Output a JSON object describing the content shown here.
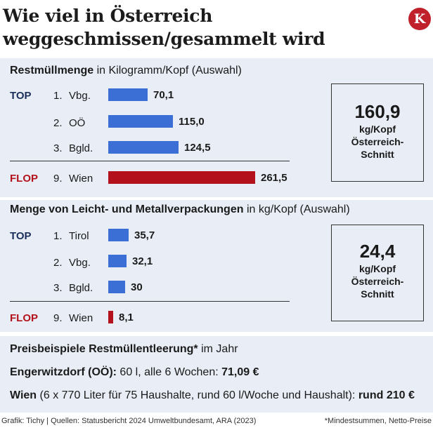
{
  "title_line1": "Wie viel in Österreich",
  "title_line2": "weggeschmissen/gesammelt wird",
  "logo_letter": "K",
  "section1": {
    "title_bold": "Restmüllmenge",
    "title_rest": " in Kilogramm/Kopf (Auswahl)",
    "top_label": "TOP",
    "flop_label": "FLOP",
    "box_value": "160,9",
    "box_unit": "kg/Kopf",
    "box_line2": "Österreich-",
    "box_line3": "Schnitt",
    "rows": [
      {
        "rank": "1.",
        "name": "Vbg.",
        "label": "70,1"
      },
      {
        "rank": "2.",
        "name": "OÖ",
        "label": "115,0"
      },
      {
        "rank": "3.",
        "name": "Bgld.",
        "label": "124,5"
      },
      {
        "rank": "9.",
        "name": "Wien",
        "label": "261,5"
      }
    ]
  },
  "section2": {
    "title_bold": "Menge von Leicht- und Metallverpackungen",
    "title_rest": " in kg/Kopf (Auswahl)",
    "top_label": "TOP",
    "flop_label": "FLOP",
    "box_value": "24,4",
    "box_unit": "kg/Kopf",
    "box_line2": "Österreich-",
    "box_line3": "Schnitt",
    "rows": [
      {
        "rank": "1.",
        "name": "Tirol",
        "label": "35,7"
      },
      {
        "rank": "2.",
        "name": "Vbg.",
        "label": "32,1"
      },
      {
        "rank": "3.",
        "name": "Bgld.",
        "label": "30"
      },
      {
        "rank": "9.",
        "name": "Wien",
        "label": "8,1"
      }
    ]
  },
  "section3": {
    "title_bold": "Preisbeispiele Restmüllentleerung*",
    "title_rest": " im Jahr",
    "line1_place": "Engerwitzdorf (OÖ):",
    "line1_detail": " 60 l, alle 6 Wochen: ",
    "line1_price": "71,09 €",
    "line2_place": "Wien",
    "line2_detail": " (6 x 770 Liter für 75 Haushalte, rund 60 l/Woche und Haushalt): ",
    "line2_price": "rund 210 €"
  },
  "footer_left": "Grafik: Tichy | Quellen: Statusbericht 2024 Umweltbundesamt, ARA (2023)",
  "footer_right": "*Mindestsummen, Netto-Preise",
  "colors": {
    "top_bar": "#3b6fd6",
    "flop_bar": "#b3121d",
    "panel": "#e9eef6"
  },
  "chart_data": [
    {
      "type": "bar",
      "title": "Restmüllmenge in Kilogramm/Kopf (Auswahl)",
      "categories": [
        "1. Vbg.",
        "2. OÖ",
        "3. Bgld.",
        "9. Wien"
      ],
      "values": [
        70.1,
        115.0,
        124.5,
        261.5
      ],
      "annotations": [
        "TOP",
        "FLOP"
      ],
      "reference": "160,9 kg/Kopf Österreich-Schnitt"
    },
    {
      "type": "bar",
      "title": "Menge von Leicht- und Metallverpackungen in kg/Kopf (Auswahl)",
      "categories": [
        "1. Tirol",
        "2. Vbg.",
        "3. Bgld.",
        "9. Wien"
      ],
      "values": [
        35.7,
        32.1,
        30,
        8.1
      ],
      "annotations": [
        "TOP",
        "FLOP"
      ],
      "reference": "24,4 kg/Kopf Österreich-Schnitt"
    }
  ]
}
